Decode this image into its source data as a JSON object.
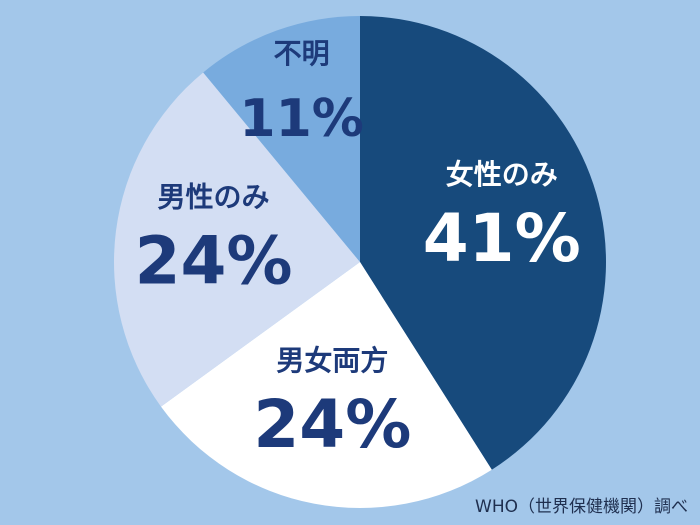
{
  "chart_data": {
    "type": "pie",
    "categories": [
      "女性のみ",
      "男女両方",
      "男性のみ",
      "不明"
    ],
    "values": [
      41,
      24,
      24,
      11
    ],
    "value_labels": [
      "41%",
      "24%",
      "24%",
      "11%"
    ],
    "colors": [
      "#174a7c",
      "#ffffff",
      "#d3def3",
      "#78abde"
    ],
    "source": "WHO（世界保健機関）調べ"
  }
}
